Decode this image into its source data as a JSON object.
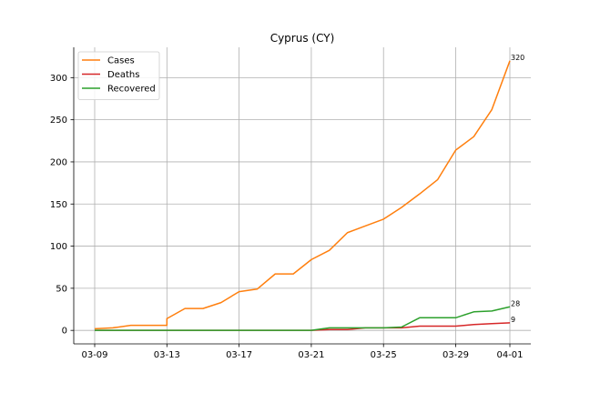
{
  "chart_data": {
    "type": "line",
    "title": "Cyprus (CY)",
    "xlabel": "",
    "ylabel": "",
    "x": [
      "03-09",
      "03-10",
      "03-11",
      "03-12",
      "03-13",
      "03-13",
      "03-14",
      "03-15",
      "03-16",
      "03-17",
      "03-18",
      "03-19",
      "03-20",
      "03-21",
      "03-22",
      "03-23",
      "03-24",
      "03-25",
      "03-26",
      "03-27",
      "03-28",
      "03-29",
      "03-30",
      "03-31",
      "04-01"
    ],
    "x_ticks": [
      "03-09",
      "03-13",
      "03-17",
      "03-21",
      "03-25",
      "03-29",
      "04-01"
    ],
    "y_ticks": [
      0,
      50,
      100,
      150,
      200,
      250,
      300
    ],
    "ylim": [
      -16,
      336
    ],
    "grid": true,
    "legend": "top-left",
    "series": [
      {
        "name": "Cases",
        "color": "#ff7f0e",
        "points": [
          [
            "03-09",
            2
          ],
          [
            "03-10",
            3
          ],
          [
            "03-11",
            6
          ],
          [
            "03-12",
            6
          ],
          [
            "03-13",
            6
          ],
          [
            "03-13",
            14
          ],
          [
            "03-14",
            26
          ],
          [
            "03-15",
            26
          ],
          [
            "03-16",
            33
          ],
          [
            "03-17",
            46
          ],
          [
            "03-18",
            49
          ],
          [
            "03-19",
            67
          ],
          [
            "03-20",
            67
          ],
          [
            "03-21",
            84
          ],
          [
            "03-22",
            95
          ],
          [
            "03-23",
            116
          ],
          [
            "03-24",
            124
          ],
          [
            "03-25",
            132
          ],
          [
            "03-26",
            146
          ],
          [
            "03-27",
            162
          ],
          [
            "03-28",
            179
          ],
          [
            "03-29",
            214
          ],
          [
            "03-30",
            230
          ],
          [
            "03-31",
            262
          ],
          [
            "04-01",
            320
          ]
        ],
        "end_label": "320"
      },
      {
        "name": "Deaths",
        "color": "#d62728",
        "points": [
          [
            "03-09",
            0
          ],
          [
            "03-10",
            0
          ],
          [
            "03-11",
            0
          ],
          [
            "03-12",
            0
          ],
          [
            "03-13",
            0
          ],
          [
            "03-14",
            0
          ],
          [
            "03-15",
            0
          ],
          [
            "03-16",
            0
          ],
          [
            "03-17",
            0
          ],
          [
            "03-18",
            0
          ],
          [
            "03-19",
            0
          ],
          [
            "03-20",
            0
          ],
          [
            "03-21",
            0
          ],
          [
            "03-22",
            1
          ],
          [
            "03-23",
            1
          ],
          [
            "03-24",
            3
          ],
          [
            "03-25",
            3
          ],
          [
            "03-26",
            3
          ],
          [
            "03-27",
            5
          ],
          [
            "03-28",
            5
          ],
          [
            "03-29",
            5
          ],
          [
            "03-30",
            7
          ],
          [
            "03-31",
            8
          ],
          [
            "04-01",
            9
          ]
        ],
        "end_label": "9"
      },
      {
        "name": "Recovered",
        "color": "#2ca02c",
        "points": [
          [
            "03-09",
            0
          ],
          [
            "03-10",
            0
          ],
          [
            "03-11",
            0
          ],
          [
            "03-12",
            0
          ],
          [
            "03-13",
            0
          ],
          [
            "03-14",
            0
          ],
          [
            "03-15",
            0
          ],
          [
            "03-16",
            0
          ],
          [
            "03-17",
            0
          ],
          [
            "03-18",
            0
          ],
          [
            "03-19",
            0
          ],
          [
            "03-20",
            0
          ],
          [
            "03-21",
            0
          ],
          [
            "03-22",
            3
          ],
          [
            "03-23",
            3
          ],
          [
            "03-24",
            3
          ],
          [
            "03-25",
            3
          ],
          [
            "03-26",
            4
          ],
          [
            "03-27",
            15
          ],
          [
            "03-28",
            15
          ],
          [
            "03-29",
            15
          ],
          [
            "03-30",
            22
          ],
          [
            "03-31",
            23
          ],
          [
            "04-01",
            28
          ]
        ],
        "end_label": "28"
      }
    ]
  }
}
